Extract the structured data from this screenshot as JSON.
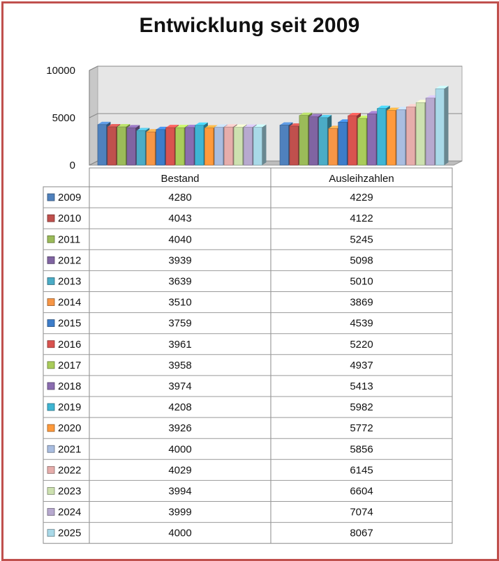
{
  "title": "Entwicklung seit 2009",
  "chart_data": {
    "type": "bar",
    "title": "Entwicklung seit 2009",
    "categories": [
      "Bestand",
      "Ausleihzahlen"
    ],
    "yticks": [
      "0",
      "5000",
      "10000"
    ],
    "ylim": [
      0,
      10000
    ],
    "grid": true,
    "legend_placement": "data-table-left",
    "series": [
      {
        "name": "2009",
        "color": "#4f81bd",
        "values": [
          4280,
          4229
        ]
      },
      {
        "name": "2010",
        "color": "#c0504d",
        "values": [
          4043,
          4122
        ]
      },
      {
        "name": "2011",
        "color": "#9bbb59",
        "values": [
          4040,
          5245
        ]
      },
      {
        "name": "2012",
        "color": "#8064a2",
        "values": [
          3939,
          5098
        ]
      },
      {
        "name": "2013",
        "color": "#4bacc6",
        "values": [
          3639,
          5010
        ]
      },
      {
        "name": "2014",
        "color": "#f79646",
        "values": [
          3510,
          3869
        ]
      },
      {
        "name": "2015",
        "color": "#3d7dca",
        "values": [
          3759,
          4539
        ]
      },
      {
        "name": "2016",
        "color": "#d9534f",
        "values": [
          3961,
          5220
        ]
      },
      {
        "name": "2017",
        "color": "#a9cc5a",
        "values": [
          3958,
          4937
        ]
      },
      {
        "name": "2018",
        "color": "#8a6cb0",
        "values": [
          3974,
          5413
        ]
      },
      {
        "name": "2019",
        "color": "#3fb5d3",
        "values": [
          4208,
          5982
        ]
      },
      {
        "name": "2020",
        "color": "#ff9a3c",
        "values": [
          3926,
          5772
        ]
      },
      {
        "name": "2021",
        "color": "#a9bde0",
        "values": [
          4000,
          5856
        ]
      },
      {
        "name": "2022",
        "color": "#e6adab",
        "values": [
          4029,
          6145
        ]
      },
      {
        "name": "2023",
        "color": "#cde1b0",
        "values": [
          3994,
          6604
        ]
      },
      {
        "name": "2024",
        "color": "#b7a9cf",
        "values": [
          3999,
          7074
        ]
      },
      {
        "name": "2025",
        "color": "#a9d9e8",
        "values": [
          4000,
          8067
        ]
      }
    ]
  }
}
